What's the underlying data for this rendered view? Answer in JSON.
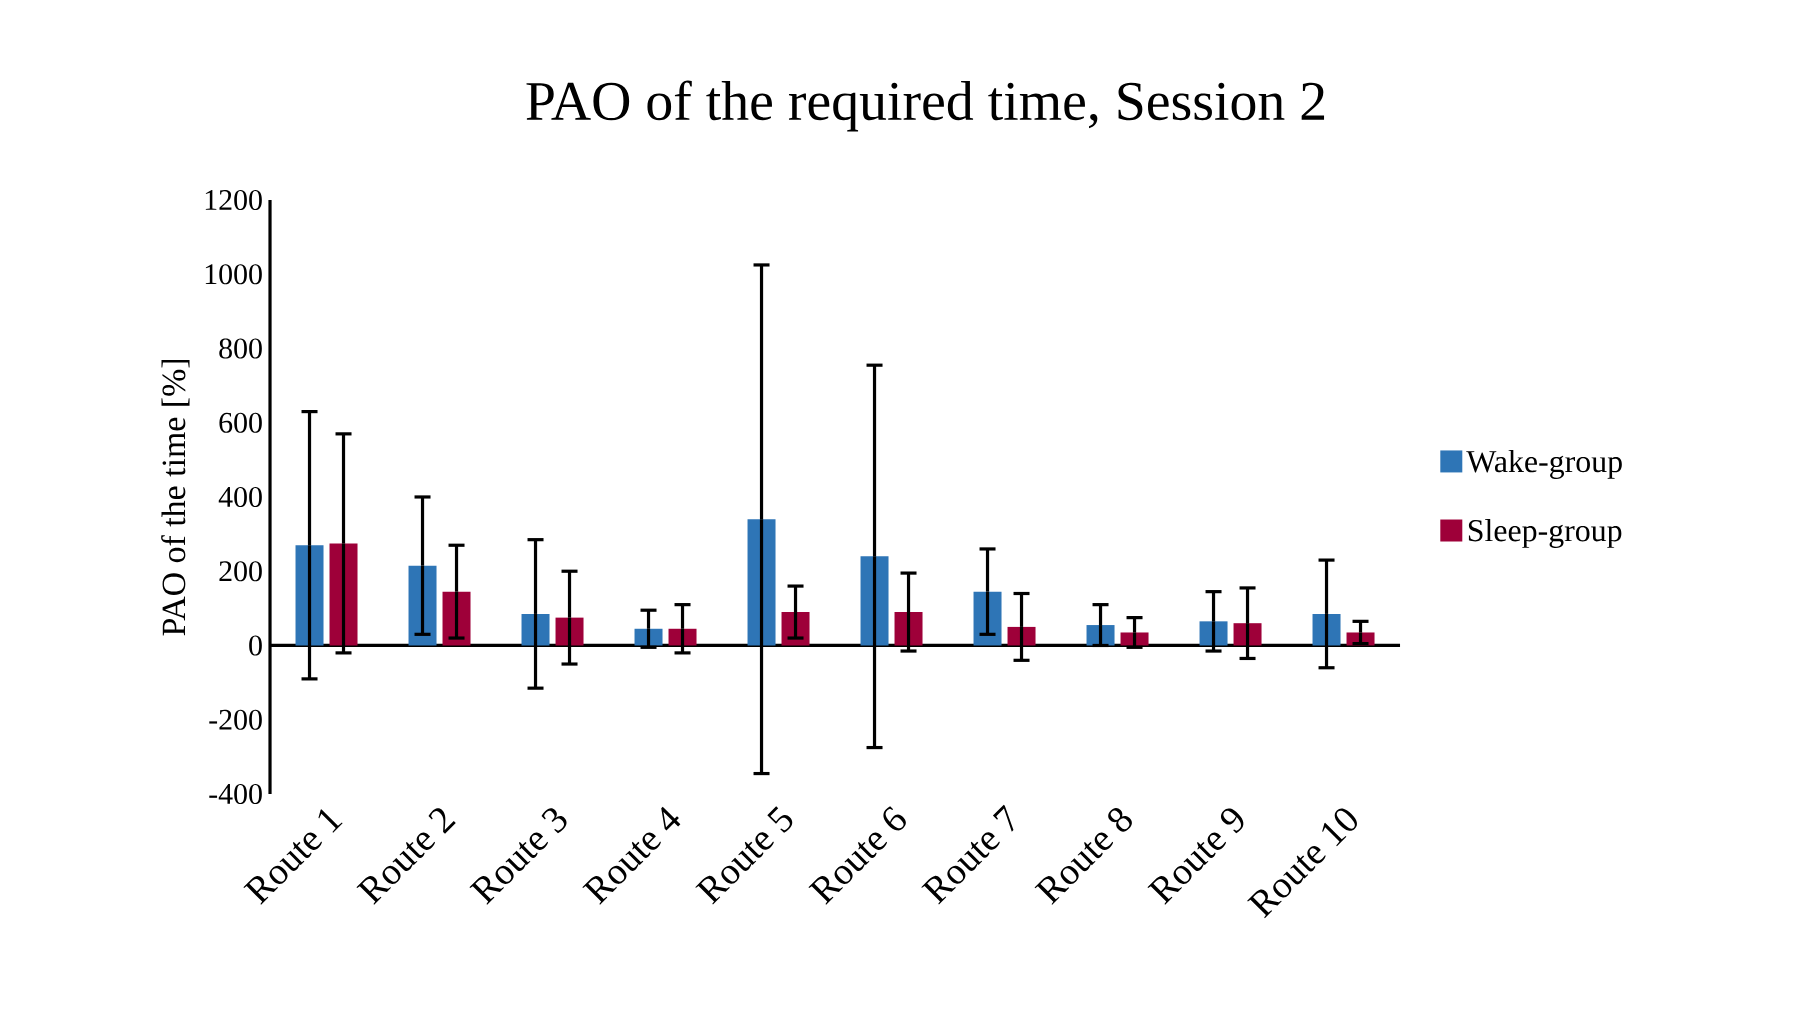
{
  "chart_data": {
    "type": "bar",
    "title": "PAO of the required time, Session 2",
    "ylabel": "PAO of the time [%]",
    "categories": [
      "Route 1",
      "Route 2",
      "Route 3",
      "Route 4",
      "Route 5",
      "Route 6",
      "Route 7",
      "Route 8",
      "Route 9",
      "Route 10"
    ],
    "series": [
      {
        "name": "Wake-group",
        "color": "#2e75b6",
        "values": [
          270,
          215,
          85,
          45,
          340,
          240,
          145,
          55,
          65,
          85
        ],
        "errors": [
          360,
          185,
          200,
          50,
          685,
          515,
          115,
          55,
          80,
          145
        ]
      },
      {
        "name": "Sleep-group",
        "color": "#9e0039",
        "values": [
          275,
          145,
          75,
          45,
          90,
          90,
          50,
          35,
          60,
          35
        ],
        "errors": [
          295,
          125,
          125,
          65,
          70,
          105,
          90,
          40,
          95,
          30
        ]
      }
    ],
    "ylim": [
      -400,
      1200
    ],
    "yticks": [
      -400,
      -200,
      0,
      200,
      400,
      600,
      800,
      1000,
      1200
    ],
    "legend": "right"
  }
}
